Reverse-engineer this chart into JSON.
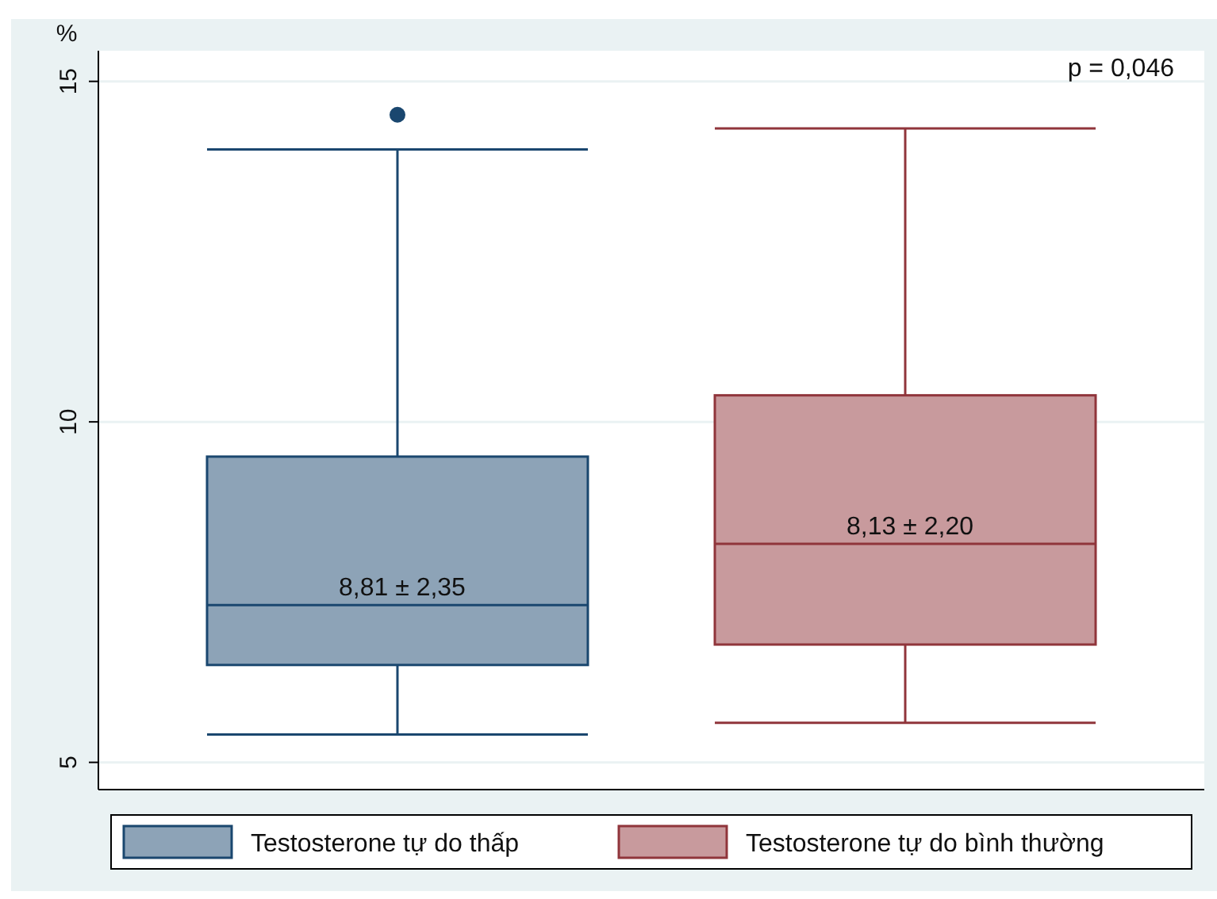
{
  "chart_data": {
    "type": "box",
    "ylabel": "%",
    "categories": [
      null,
      null
    ],
    "ylim": [
      4.6,
      15.45
    ],
    "yticks": [
      5,
      10,
      15
    ],
    "grid": "y",
    "legend": "bottom",
    "marker": "circle",
    "annotations": [
      "p = 0,046"
    ],
    "series": [
      {
        "name": "Testosterone tự do thấp",
        "color": "#1a476f",
        "boxes": [
          {
            "low": 5.41,
            "q1": 6.43,
            "median": 7.31,
            "q3": 9.49,
            "high": 14.0,
            "outliers": [
              14.51
            ]
          },
          null
        ],
        "value_labels": [
          "8,81 ± 2,35",
          null
        ]
      },
      {
        "name": "Testosterone tự do bình thường",
        "color": "#90353b",
        "boxes": [
          null,
          {
            "low": 5.58,
            "q1": 6.73,
            "median": 8.21,
            "q3": 10.39,
            "high": 14.31
          }
        ],
        "value_labels": [
          null,
          "8,13 ± 2,20"
        ]
      }
    ]
  }
}
